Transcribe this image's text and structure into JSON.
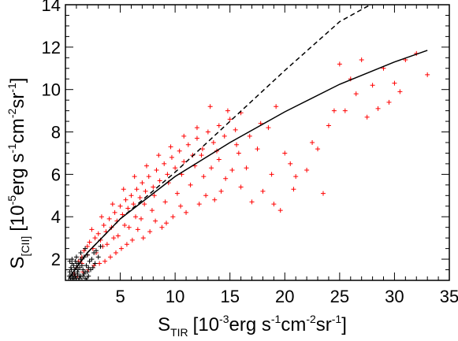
{
  "chart_data": {
    "type": "scatter",
    "title": "",
    "xlabel": {
      "main": "S",
      "subscript": "TIR",
      "unit_prefix": "[10",
      "exponent": "-3",
      "unit_rest": "erg s",
      "s_exp": "-1",
      "cm": "cm",
      "cm_exp": "-2",
      "sr": "sr",
      "sr_exp": "-1",
      "close": "]"
    },
    "ylabel": {
      "main": "S",
      "subscript": "[CII]",
      "unit_prefix": "[10",
      "exponent": "-5",
      "unit_rest": "erg s",
      "s_exp": "-1",
      "cm": "cm",
      "cm_exp": "-2",
      "sr": "sr",
      "sr_exp": "-1",
      "close": "]"
    },
    "xlim": [
      0,
      35
    ],
    "ylim": [
      1,
      14
    ],
    "x_ticks": [
      "5",
      "10",
      "15",
      "20",
      "25",
      "30",
      "35"
    ],
    "y_ticks": [
      "2",
      "4",
      "6",
      "8",
      "10",
      "12",
      "14"
    ],
    "x_tick_values": [
      5,
      10,
      15,
      20,
      25,
      30,
      35
    ],
    "y_tick_values": [
      2,
      4,
      6,
      8,
      10,
      12,
      14
    ],
    "grid": false,
    "colors": {
      "red_points": "#ff0000",
      "black_points": "#000000",
      "fit_line": "#000000"
    },
    "series": [
      {
        "style": "red-plus",
        "points": [
          [
            0.8,
            1.3
          ],
          [
            1.0,
            1.6
          ],
          [
            1.2,
            1.9
          ],
          [
            1.5,
            2.1
          ],
          [
            1.7,
            2.4
          ],
          [
            2.0,
            2.2
          ],
          [
            2.2,
            2.8
          ],
          [
            2.5,
            2.5
          ],
          [
            2.7,
            3.0
          ],
          [
            3.0,
            3.2
          ],
          [
            3.2,
            2.9
          ],
          [
            3.5,
            3.6
          ],
          [
            3.7,
            3.3
          ],
          [
            4.0,
            3.9
          ],
          [
            4.2,
            3.5
          ],
          [
            4.5,
            4.2
          ],
          [
            4.7,
            3.8
          ],
          [
            5.0,
            4.5
          ],
          [
            5.2,
            4.1
          ],
          [
            5.5,
            4.8
          ],
          [
            5.7,
            4.4
          ],
          [
            6.0,
            5.0
          ],
          [
            6.2,
            4.6
          ],
          [
            6.5,
            5.3
          ],
          [
            6.8,
            4.9
          ],
          [
            7.0,
            5.6
          ],
          [
            7.3,
            5.2
          ],
          [
            7.6,
            5.9
          ],
          [
            8.0,
            5.4
          ],
          [
            8.3,
            6.2
          ],
          [
            8.6,
            5.7
          ],
          [
            9.0,
            6.5
          ],
          [
            9.3,
            6.0
          ],
          [
            9.7,
            6.8
          ],
          [
            10.0,
            6.3
          ],
          [
            10.4,
            7.1
          ],
          [
            10.8,
            6.6
          ],
          [
            11.2,
            7.4
          ],
          [
            11.6,
            6.9
          ],
          [
            12.0,
            7.7
          ],
          [
            12.5,
            7.2
          ],
          [
            13.0,
            8.0
          ],
          [
            13.5,
            7.5
          ],
          [
            14.0,
            8.3
          ],
          [
            14.5,
            7.8
          ],
          [
            15.0,
            8.6
          ],
          [
            15.5,
            8.1
          ],
          [
            16.0,
            8.9
          ],
          [
            13.2,
            9.2
          ],
          [
            14.8,
            9.0
          ],
          [
            1.5,
            1.8
          ],
          [
            2.0,
            2.6
          ],
          [
            2.4,
            3.4
          ],
          [
            2.8,
            2.3
          ],
          [
            3.3,
            4.0
          ],
          [
            3.8,
            2.7
          ],
          [
            4.3,
            4.6
          ],
          [
            4.8,
            3.1
          ],
          [
            5.3,
            5.3
          ],
          [
            5.8,
            3.5
          ],
          [
            6.3,
            5.9
          ],
          [
            6.9,
            3.9
          ],
          [
            7.4,
            6.4
          ],
          [
            7.9,
            4.3
          ],
          [
            8.5,
            6.9
          ],
          [
            9.1,
            4.7
          ],
          [
            9.6,
            7.3
          ],
          [
            10.2,
            5.1
          ],
          [
            10.8,
            7.8
          ],
          [
            11.4,
            5.5
          ],
          [
            12.0,
            8.2
          ],
          [
            12.6,
            5.9
          ],
          [
            13.3,
            6.3
          ],
          [
            14.0,
            6.7
          ],
          [
            14.6,
            5.8
          ],
          [
            15.2,
            6.2
          ],
          [
            16.0,
            5.4
          ],
          [
            17.0,
            4.7
          ],
          [
            18.0,
            5.2
          ],
          [
            19.0,
            4.6
          ],
          [
            17.5,
            7.2
          ],
          [
            18.5,
            8.2
          ],
          [
            19.2,
            9.2
          ],
          [
            20.0,
            7.0
          ],
          [
            20.5,
            6.5
          ],
          [
            21.0,
            5.9
          ],
          [
            22.0,
            6.2
          ],
          [
            23.0,
            7.2
          ],
          [
            23.5,
            5.1
          ],
          [
            24.0,
            8.3
          ],
          [
            25.0,
            11.2
          ],
          [
            25.5,
            9.0
          ],
          [
            26.0,
            10.5
          ],
          [
            26.5,
            9.8
          ],
          [
            27.0,
            11.4
          ],
          [
            27.5,
            8.7
          ],
          [
            28.0,
            10.2
          ],
          [
            29.0,
            11.0
          ],
          [
            29.5,
            9.4
          ],
          [
            30.0,
            10.3
          ],
          [
            31.0,
            11.4
          ],
          [
            32.0,
            11.7
          ],
          [
            33.0,
            10.7
          ],
          [
            30.5,
            9.9
          ],
          [
            28.5,
            9.1
          ],
          [
            24.5,
            9.0
          ],
          [
            22.5,
            7.5
          ],
          [
            20.8,
            5.3
          ],
          [
            19.6,
            4.3
          ],
          [
            18.8,
            6.0
          ],
          [
            16.5,
            6.3
          ],
          [
            15.8,
            7.0
          ],
          [
            14.2,
            5.2
          ],
          [
            13.6,
            4.8
          ],
          [
            12.8,
            5.0
          ],
          [
            12.2,
            4.6
          ],
          [
            11.0,
            4.2
          ],
          [
            10.5,
            4.5
          ],
          [
            9.8,
            4.0
          ],
          [
            9.2,
            3.7
          ],
          [
            8.8,
            3.5
          ],
          [
            8.2,
            3.8
          ],
          [
            7.7,
            3.3
          ],
          [
            7.1,
            3.0
          ],
          [
            6.6,
            3.4
          ],
          [
            6.1,
            2.9
          ],
          [
            5.6,
            2.7
          ],
          [
            5.1,
            2.5
          ],
          [
            4.6,
            2.3
          ],
          [
            4.1,
            2.1
          ],
          [
            3.6,
            1.9
          ],
          [
            3.1,
            1.8
          ],
          [
            2.6,
            1.7
          ],
          [
            2.1,
            1.5
          ],
          [
            1.6,
            1.4
          ],
          [
            1.1,
            1.2
          ],
          [
            3.4,
            2.6
          ],
          [
            4.4,
            3.0
          ],
          [
            5.4,
            3.6
          ],
          [
            6.4,
            4.0
          ],
          [
            7.2,
            4.6
          ],
          [
            8.1,
            5.0
          ],
          [
            9.4,
            5.6
          ],
          [
            10.6,
            6.0
          ],
          [
            11.8,
            6.4
          ],
          [
            12.4,
            6.9
          ],
          [
            13.8,
            7.1
          ],
          [
            15.6,
            7.4
          ],
          [
            16.8,
            7.8
          ],
          [
            17.8,
            8.4
          ]
        ]
      },
      {
        "style": "black-plus",
        "points": [
          [
            0.3,
            1.0
          ],
          [
            0.5,
            1.1
          ],
          [
            0.6,
            1.3
          ],
          [
            0.7,
            1.0
          ],
          [
            0.8,
            1.5
          ],
          [
            0.9,
            1.2
          ],
          [
            1.0,
            1.1
          ],
          [
            1.1,
            1.4
          ],
          [
            1.2,
            1.0
          ],
          [
            1.3,
            1.6
          ],
          [
            1.4,
            1.2
          ],
          [
            1.5,
            1.0
          ],
          [
            1.6,
            1.5
          ],
          [
            1.7,
            1.3
          ],
          [
            1.8,
            1.1
          ],
          [
            1.9,
            1.7
          ],
          [
            2.0,
            1.4
          ],
          [
            2.1,
            1.2
          ],
          [
            2.2,
            1.9
          ],
          [
            2.3,
            1.5
          ],
          [
            0.4,
            1.4
          ],
          [
            0.5,
            1.6
          ],
          [
            0.6,
            1.8
          ],
          [
            0.7,
            1.2
          ],
          [
            0.8,
            1.1
          ],
          [
            0.9,
            1.9
          ],
          [
            1.0,
            1.6
          ],
          [
            1.1,
            1.3
          ],
          [
            1.2,
            1.8
          ],
          [
            1.3,
            1.1
          ],
          [
            1.4,
            2.0
          ],
          [
            1.5,
            1.7
          ],
          [
            1.6,
            1.2
          ],
          [
            1.7,
            2.1
          ],
          [
            1.8,
            1.4
          ],
          [
            1.9,
            1.0
          ],
          [
            2.0,
            2.2
          ],
          [
            2.1,
            1.6
          ],
          [
            2.4,
            2.0
          ],
          [
            2.6,
            2.3
          ],
          [
            0.35,
            1.2
          ],
          [
            0.45,
            1.0
          ],
          [
            0.55,
            1.5
          ],
          [
            0.65,
            1.1
          ],
          [
            0.75,
            1.7
          ],
          [
            0.85,
            1.3
          ],
          [
            0.95,
            1.0
          ],
          [
            1.05,
            1.8
          ],
          [
            1.15,
            1.5
          ],
          [
            1.25,
            1.2
          ],
          [
            2.8,
            2.4
          ],
          [
            3.0,
            2.1
          ],
          [
            2.7,
            1.8
          ],
          [
            2.5,
            1.6
          ],
          [
            3.2,
            2.6
          ],
          [
            0.4,
            1.9
          ],
          [
            0.6,
            2.0
          ],
          [
            1.0,
            2.1
          ],
          [
            1.4,
            2.3
          ],
          [
            1.8,
            2.5
          ]
        ]
      }
    ],
    "fit_lines": [
      {
        "style": "solid",
        "points": [
          [
            0.3,
            1.1
          ],
          [
            2,
            2.3
          ],
          [
            5,
            3.9
          ],
          [
            10,
            5.9
          ],
          [
            15,
            7.5
          ],
          [
            20,
            8.95
          ],
          [
            25,
            10.25
          ],
          [
            30,
            11.3
          ],
          [
            33,
            11.85
          ]
        ]
      },
      {
        "style": "dashed",
        "points": [
          [
            0.3,
            1.1
          ],
          [
            2,
            2.3
          ],
          [
            5,
            3.9
          ],
          [
            10,
            6.1
          ],
          [
            15,
            8.5
          ],
          [
            20,
            10.9
          ],
          [
            25,
            13.2
          ],
          [
            27.8,
            14.0
          ]
        ]
      }
    ]
  }
}
